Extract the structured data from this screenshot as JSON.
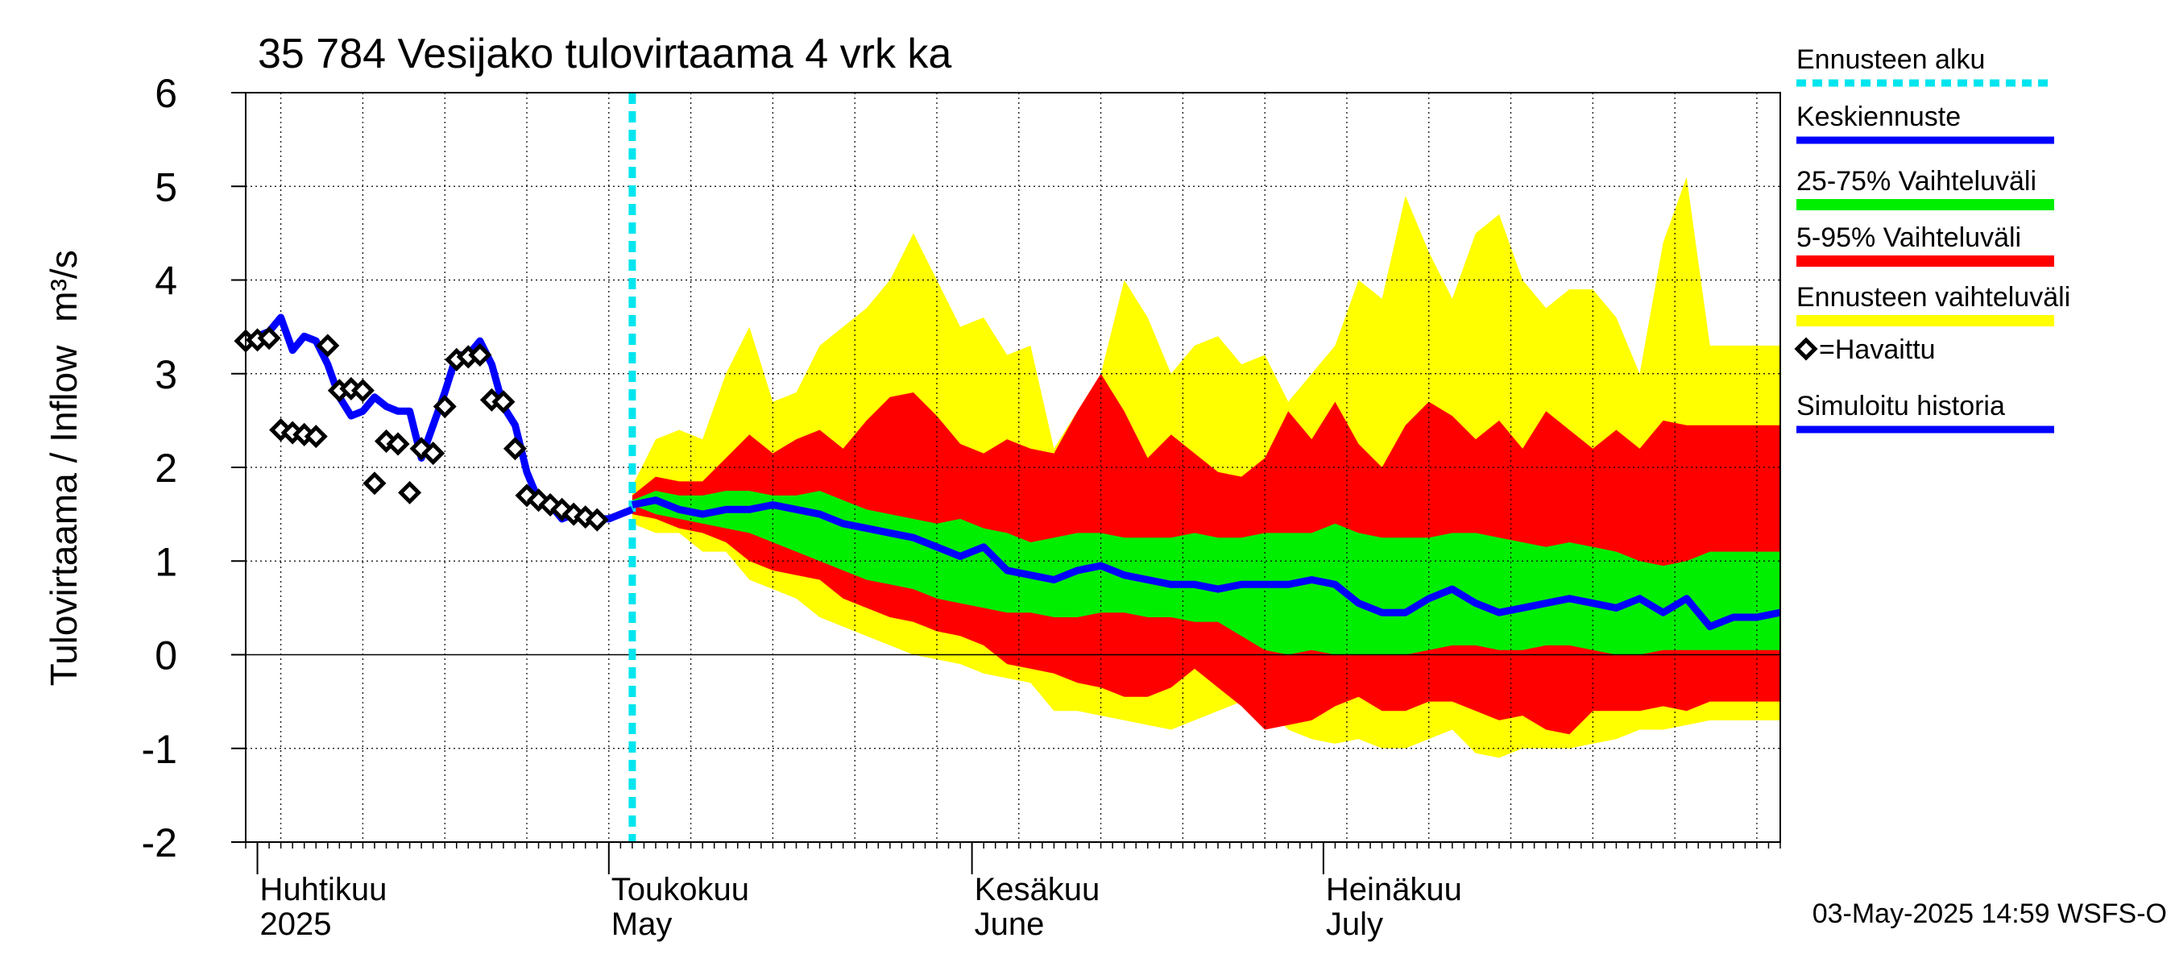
{
  "chart_data": {
    "type": "area",
    "title": "35 784 Vesijako tulovirtaama 4 vrk ka",
    "ylabel": "Tulovirtaama / Inflow",
    "yunit": "m³/s",
    "ylim": [
      -2,
      6
    ],
    "yticks": [
      -2,
      -1,
      0,
      1,
      2,
      3,
      4,
      5,
      6
    ],
    "xlim": [
      "2025-03-31",
      "2025-08-09"
    ],
    "grid": true,
    "month_labels": [
      {
        "line1": "Huhtikuu",
        "line2": "2025",
        "x": "2025-04-01"
      },
      {
        "line1": "Toukokuu",
        "line2": "May",
        "x": "2025-05-01"
      },
      {
        "line1": "Kesäkuu",
        "line2": "June",
        "x": "2025-06-01"
      },
      {
        "line1": "Heinäkuu",
        "line2": "July",
        "x": "2025-07-01"
      }
    ],
    "forecast_start": "2025-05-03",
    "timestamp": "03-May-2025 14:59 WSFS-O",
    "legend": [
      {
        "label": "Ennusteen alku",
        "color": "#00e5ee",
        "style": "dotted"
      },
      {
        "label": "Keskiennuste",
        "color": "#0000ff",
        "style": "line"
      },
      {
        "label": "25-75% Vaihteluväli",
        "color": "#00ee00",
        "style": "band"
      },
      {
        "label": "5-95% Vaihteluväli",
        "color": "#ff0000",
        "style": "band"
      },
      {
        "label": "Ennusteen vaihteluväli",
        "color": "#ffff00",
        "style": "band"
      },
      {
        "label": "=Havaittu",
        "color": "#000000",
        "style": "diamond"
      },
      {
        "label": "Simuloitu historia",
        "color": "#0000ff",
        "style": "line"
      }
    ],
    "legend_position": "right",
    "colors": {
      "yellow": "#ffff00",
      "red": "#ff0000",
      "green": "#00ee00",
      "blue": "#0000ff",
      "cyan": "#00e5ee",
      "black": "#000000"
    },
    "observed": [
      [
        "2025-03-31",
        3.35
      ],
      [
        "2025-04-01",
        3.36
      ],
      [
        "2025-04-02",
        3.38
      ],
      [
        "2025-04-03",
        2.4
      ],
      [
        "2025-04-04",
        2.37
      ],
      [
        "2025-04-05",
        2.35
      ],
      [
        "2025-04-06",
        2.33
      ],
      [
        "2025-04-07",
        3.3
      ],
      [
        "2025-04-08",
        2.82
      ],
      [
        "2025-04-09",
        2.84
      ],
      [
        "2025-04-10",
        2.82
      ],
      [
        "2025-04-11",
        1.83
      ],
      [
        "2025-04-12",
        2.28
      ],
      [
        "2025-04-13",
        2.25
      ],
      [
        "2025-04-14",
        1.73
      ],
      [
        "2025-04-15",
        2.2
      ],
      [
        "2025-04-16",
        2.15
      ],
      [
        "2025-04-17",
        2.65
      ],
      [
        "2025-04-18",
        3.15
      ],
      [
        "2025-04-19",
        3.18
      ],
      [
        "2025-04-20",
        3.2
      ],
      [
        "2025-04-21",
        2.72
      ],
      [
        "2025-04-22",
        2.7
      ],
      [
        "2025-04-23",
        2.2
      ],
      [
        "2025-04-24",
        1.7
      ],
      [
        "2025-04-25",
        1.65
      ],
      [
        "2025-04-26",
        1.6
      ],
      [
        "2025-04-27",
        1.55
      ],
      [
        "2025-04-28",
        1.5
      ],
      [
        "2025-04-29",
        1.47
      ],
      [
        "2025-04-30",
        1.44
      ]
    ],
    "simulated_history": [
      [
        "2025-03-31",
        3.35
      ],
      [
        "2025-04-01",
        3.4
      ],
      [
        "2025-04-02",
        3.45
      ],
      [
        "2025-04-03",
        3.6
      ],
      [
        "2025-04-04",
        3.25
      ],
      [
        "2025-04-05",
        3.4
      ],
      [
        "2025-04-06",
        3.35
      ],
      [
        "2025-04-07",
        3.1
      ],
      [
        "2025-04-08",
        2.75
      ],
      [
        "2025-04-09",
        2.55
      ],
      [
        "2025-04-10",
        2.6
      ],
      [
        "2025-04-11",
        2.75
      ],
      [
        "2025-04-12",
        2.65
      ],
      [
        "2025-04-13",
        2.6
      ],
      [
        "2025-04-14",
        2.6
      ],
      [
        "2025-04-15",
        2.1
      ],
      [
        "2025-04-16",
        2.45
      ],
      [
        "2025-04-17",
        2.8
      ],
      [
        "2025-04-18",
        3.2
      ],
      [
        "2025-04-19",
        3.2
      ],
      [
        "2025-04-20",
        3.35
      ],
      [
        "2025-04-21",
        3.1
      ],
      [
        "2025-04-22",
        2.65
      ],
      [
        "2025-04-23",
        2.45
      ],
      [
        "2025-04-24",
        1.95
      ],
      [
        "2025-04-25",
        1.65
      ],
      [
        "2025-04-26",
        1.6
      ],
      [
        "2025-04-27",
        1.45
      ],
      [
        "2025-04-28",
        1.5
      ],
      [
        "2025-04-29",
        1.5
      ],
      [
        "2025-04-30",
        1.45
      ],
      [
        "2025-05-01",
        1.45
      ],
      [
        "2025-05-02",
        1.5
      ],
      [
        "2025-05-03",
        1.55
      ]
    ],
    "forecast": {
      "x": [
        "2025-05-03",
        "2025-05-05",
        "2025-05-07",
        "2025-05-09",
        "2025-05-11",
        "2025-05-13",
        "2025-05-15",
        "2025-05-17",
        "2025-05-19",
        "2025-05-21",
        "2025-05-23",
        "2025-05-25",
        "2025-05-27",
        "2025-05-29",
        "2025-05-31",
        "2025-06-02",
        "2025-06-04",
        "2025-06-06",
        "2025-06-08",
        "2025-06-10",
        "2025-06-12",
        "2025-06-14",
        "2025-06-16",
        "2025-06-18",
        "2025-06-20",
        "2025-06-22",
        "2025-06-24",
        "2025-06-26",
        "2025-06-28",
        "2025-06-30",
        "2025-07-02",
        "2025-07-04",
        "2025-07-06",
        "2025-07-08",
        "2025-07-10",
        "2025-07-12",
        "2025-07-14",
        "2025-07-16",
        "2025-07-18",
        "2025-07-20",
        "2025-07-22",
        "2025-07-24",
        "2025-07-26",
        "2025-07-28",
        "2025-07-30",
        "2025-08-01",
        "2025-08-03",
        "2025-08-05",
        "2025-08-07",
        "2025-08-09"
      ],
      "yellow_high": [
        1.8,
        2.3,
        2.4,
        2.3,
        3.0,
        3.5,
        2.7,
        2.8,
        3.3,
        3.5,
        3.7,
        4.0,
        4.5,
        4.0,
        3.5,
        3.6,
        3.2,
        3.3,
        2.2,
        2.6,
        3.0,
        4.0,
        3.6,
        3.0,
        3.3,
        3.4,
        3.1,
        3.2,
        2.7,
        3.0,
        3.3,
        4.0,
        3.8,
        4.9,
        4.3,
        3.8,
        4.5,
        4.7,
        4.0,
        3.7,
        3.9,
        3.9,
        3.6,
        3.0,
        4.4,
        5.1,
        3.3,
        3.3,
        3.3,
        3.3
      ],
      "yellow_low": [
        1.4,
        1.3,
        1.3,
        1.1,
        1.1,
        0.8,
        0.7,
        0.6,
        0.4,
        0.3,
        0.2,
        0.1,
        0.0,
        -0.05,
        -0.1,
        -0.2,
        -0.25,
        -0.3,
        -0.6,
        -0.6,
        -0.65,
        -0.7,
        -0.75,
        -0.8,
        -0.7,
        -0.6,
        -0.5,
        -0.55,
        -0.8,
        -0.9,
        -0.95,
        -0.9,
        -1.0,
        -1.0,
        -0.9,
        -0.8,
        -1.05,
        -1.1,
        -1.0,
        -1.0,
        -1.0,
        -0.95,
        -0.9,
        -0.8,
        -0.8,
        -0.75,
        -0.7,
        -0.7,
        -0.7,
        -0.7
      ],
      "red_high": [
        1.7,
        1.9,
        1.85,
        1.85,
        2.1,
        2.35,
        2.15,
        2.3,
        2.4,
        2.2,
        2.5,
        2.75,
        2.8,
        2.55,
        2.25,
        2.15,
        2.3,
        2.2,
        2.15,
        2.6,
        3.0,
        2.6,
        2.1,
        2.35,
        2.15,
        1.95,
        1.9,
        2.1,
        2.6,
        2.3,
        2.7,
        2.25,
        2.0,
        2.45,
        2.7,
        2.55,
        2.3,
        2.5,
        2.2,
        2.6,
        2.4,
        2.2,
        2.4,
        2.2,
        2.5,
        2.45,
        2.45,
        2.45,
        2.45,
        2.45
      ],
      "red_low": [
        1.5,
        1.45,
        1.35,
        1.3,
        1.2,
        1.0,
        0.9,
        0.85,
        0.8,
        0.6,
        0.5,
        0.4,
        0.35,
        0.25,
        0.2,
        0.1,
        -0.1,
        -0.15,
        -0.2,
        -0.3,
        -0.35,
        -0.45,
        -0.45,
        -0.35,
        -0.15,
        -0.35,
        -0.55,
        -0.8,
        -0.75,
        -0.7,
        -0.55,
        -0.45,
        -0.6,
        -0.6,
        -0.5,
        -0.5,
        -0.6,
        -0.7,
        -0.65,
        -0.8,
        -0.85,
        -0.6,
        -0.6,
        -0.6,
        -0.55,
        -0.6,
        -0.5,
        -0.5,
        -0.5,
        -0.5
      ],
      "green_high": [
        1.65,
        1.75,
        1.7,
        1.7,
        1.75,
        1.75,
        1.7,
        1.7,
        1.75,
        1.65,
        1.55,
        1.5,
        1.45,
        1.4,
        1.45,
        1.35,
        1.3,
        1.2,
        1.25,
        1.3,
        1.3,
        1.25,
        1.25,
        1.25,
        1.3,
        1.25,
        1.25,
        1.3,
        1.3,
        1.3,
        1.4,
        1.3,
        1.25,
        1.25,
        1.25,
        1.3,
        1.3,
        1.25,
        1.2,
        1.15,
        1.2,
        1.15,
        1.1,
        1.0,
        0.95,
        1.0,
        1.1,
        1.1,
        1.1,
        1.1
      ],
      "green_low": [
        1.6,
        1.5,
        1.45,
        1.4,
        1.35,
        1.3,
        1.2,
        1.1,
        1.0,
        0.9,
        0.8,
        0.75,
        0.7,
        0.6,
        0.55,
        0.5,
        0.45,
        0.45,
        0.4,
        0.4,
        0.45,
        0.45,
        0.4,
        0.4,
        0.35,
        0.35,
        0.2,
        0.05,
        0.0,
        0.05,
        0.0,
        0.0,
        0.0,
        0.0,
        0.05,
        0.1,
        0.1,
        0.05,
        0.05,
        0.1,
        0.1,
        0.05,
        0.0,
        0.0,
        0.05,
        0.05,
        0.05,
        0.05,
        0.05,
        0.05
      ],
      "median": [
        1.6,
        1.65,
        1.55,
        1.5,
        1.55,
        1.55,
        1.6,
        1.55,
        1.5,
        1.4,
        1.35,
        1.3,
        1.25,
        1.15,
        1.05,
        1.15,
        0.9,
        0.85,
        0.8,
        0.9,
        0.95,
        0.85,
        0.8,
        0.75,
        0.75,
        0.7,
        0.75,
        0.75,
        0.75,
        0.8,
        0.75,
        0.55,
        0.45,
        0.45,
        0.6,
        0.7,
        0.55,
        0.45,
        0.5,
        0.55,
        0.6,
        0.55,
        0.5,
        0.6,
        0.45,
        0.6,
        0.3,
        0.4,
        0.4,
        0.45
      ]
    }
  }
}
